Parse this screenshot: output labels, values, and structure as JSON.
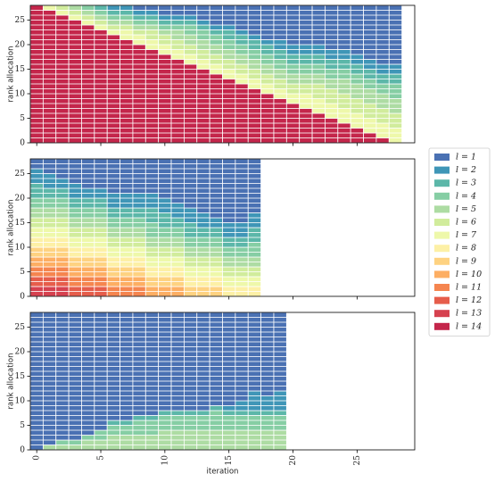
{
  "legend": {
    "entries": [
      {
        "name": "l = 1",
        "color": "#4a71b3"
      },
      {
        "name": "l = 2",
        "color": "#3f96b7"
      },
      {
        "name": "l = 3",
        "color": "#5cb7a9"
      },
      {
        "name": "l = 4",
        "color": "#86cea4"
      },
      {
        "name": "l = 5",
        "color": "#addca3"
      },
      {
        "name": "l = 6",
        "color": "#d1ec9c"
      },
      {
        "name": "l = 7",
        "color": "#eef8aa"
      },
      {
        "name": "l = 8",
        "color": "#fdf0a6"
      },
      {
        "name": "l = 9",
        "color": "#fed281"
      },
      {
        "name": "l = 10",
        "color": "#fdae63"
      },
      {
        "name": "l = 11",
        "color": "#f5854f"
      },
      {
        "name": "l = 12",
        "color": "#e65d4b"
      },
      {
        "name": "l = 13",
        "color": "#d6414f"
      },
      {
        "name": "l = 14",
        "color": "#c4264b"
      }
    ]
  },
  "chart_data": [
    {
      "type": "bar",
      "stacked": true,
      "ylabel": "rank allocation",
      "xlim": [
        -0.5,
        29.5
      ],
      "ylim": [
        0,
        28
      ],
      "yticks": [
        0,
        5,
        10,
        15,
        20,
        25
      ],
      "x": [
        0,
        1,
        2,
        3,
        4,
        5,
        6,
        7,
        8,
        9,
        10,
        11,
        12,
        13,
        14,
        15,
        16,
        17,
        18,
        19,
        20,
        21,
        22,
        23,
        24,
        25,
        26,
        27,
        28
      ],
      "series": [
        {
          "name": "l = 1",
          "values": [
            0,
            0,
            0,
            0,
            0,
            0,
            0,
            0,
            1,
            1,
            2,
            2,
            2,
            3,
            4,
            4,
            5,
            6,
            7,
            7,
            8,
            8,
            8,
            9,
            9,
            10,
            11,
            12,
            12
          ]
        },
        {
          "name": "l = 2",
          "values": [
            0,
            0,
            0,
            0,
            0,
            0,
            1,
            1,
            1,
            1,
            1,
            1,
            1,
            1,
            1,
            1,
            1,
            1,
            1,
            2,
            2,
            2,
            2,
            2,
            2,
            2,
            2,
            2,
            2
          ]
        },
        {
          "name": "l = 3",
          "values": [
            0,
            0,
            0,
            0,
            0,
            1,
            1,
            1,
            1,
            1,
            1,
            1,
            1,
            1,
            1,
            2,
            2,
            2,
            2,
            2,
            2,
            2,
            2,
            2,
            2,
            2,
            2,
            2,
            2
          ]
        },
        {
          "name": "l = 4",
          "values": [
            0,
            0,
            0,
            0,
            1,
            1,
            1,
            1,
            1,
            1,
            1,
            1,
            2,
            2,
            2,
            2,
            2,
            2,
            2,
            2,
            2,
            2,
            2,
            2,
            2,
            2,
            2,
            2,
            3
          ]
        },
        {
          "name": "l = 5",
          "values": [
            0,
            0,
            0,
            1,
            1,
            1,
            1,
            1,
            1,
            1,
            1,
            2,
            2,
            2,
            2,
            2,
            2,
            2,
            2,
            2,
            2,
            2,
            2,
            2,
            3,
            3,
            3,
            3,
            3
          ]
        },
        {
          "name": "l = 6",
          "values": [
            0,
            0,
            1,
            1,
            1,
            1,
            1,
            1,
            1,
            2,
            2,
            2,
            2,
            2,
            2,
            2,
            2,
            2,
            2,
            2,
            2,
            2,
            3,
            3,
            3,
            3,
            3,
            3,
            3
          ]
        },
        {
          "name": "l = 7",
          "values": [
            0,
            1,
            1,
            1,
            1,
            1,
            1,
            2,
            2,
            2,
            2,
            2,
            2,
            2,
            2,
            2,
            2,
            2,
            2,
            2,
            2,
            3,
            3,
            3,
            3,
            3,
            3,
            3,
            3
          ]
        },
        {
          "name": "l = 14",
          "values": [
            28,
            27,
            26,
            25,
            24,
            23,
            22,
            21,
            20,
            19,
            18,
            17,
            16,
            15,
            14,
            13,
            12,
            11,
            10,
            9,
            8,
            7,
            6,
            5,
            4,
            3,
            2,
            1,
            0
          ]
        }
      ]
    },
    {
      "type": "bar",
      "stacked": true,
      "ylabel": "rank allocation",
      "xlim": [
        -0.5,
        29.5
      ],
      "ylim": [
        0,
        28
      ],
      "yticks": [
        0,
        5,
        10,
        15,
        20,
        25
      ],
      "x": [
        0,
        1,
        2,
        3,
        4,
        5,
        6,
        7,
        8,
        9,
        10,
        11,
        12,
        13,
        14,
        15,
        16,
        17
      ],
      "series": [
        {
          "name": "l = 1",
          "values": [
            2,
            3,
            4,
            5,
            6,
            6,
            7,
            7,
            7,
            7,
            8,
            9,
            10,
            11,
            12,
            13,
            13,
            11
          ]
        },
        {
          "name": "l = 2",
          "values": [
            3,
            3,
            2,
            3,
            2,
            2,
            3,
            3,
            3,
            3,
            3,
            3,
            3,
            3,
            2,
            3,
            3,
            3
          ]
        },
        {
          "name": "l = 3",
          "values": [
            3,
            2,
            2,
            2,
            2,
            2,
            2,
            2,
            2,
            3,
            3,
            2,
            3,
            2,
            2,
            2,
            2,
            3
          ]
        },
        {
          "name": "l = 4",
          "values": [
            2,
            2,
            2,
            2,
            2,
            2,
            2,
            2,
            2,
            3,
            2,
            2,
            2,
            2,
            2,
            2,
            2,
            3
          ]
        },
        {
          "name": "l = 5",
          "values": [
            2,
            2,
            2,
            2,
            2,
            2,
            2,
            2,
            2,
            2,
            2,
            2,
            2,
            2,
            2,
            2,
            2,
            2
          ]
        },
        {
          "name": "l = 6",
          "values": [
            2,
            2,
            2,
            2,
            2,
            2,
            2,
            2,
            2,
            2,
            2,
            2,
            2,
            2,
            2,
            2,
            2,
            2
          ]
        },
        {
          "name": "l = 7",
          "values": [
            2,
            2,
            2,
            2,
            2,
            2,
            2,
            2,
            2,
            2,
            2,
            2,
            2,
            2,
            2,
            2,
            2,
            2
          ]
        },
        {
          "name": "l = 8",
          "values": [
            2,
            2,
            2,
            2,
            2,
            2,
            2,
            2,
            2,
            2,
            2,
            2,
            2,
            2,
            2,
            2,
            2,
            2
          ]
        },
        {
          "name": "l = 9",
          "values": [
            2,
            2,
            2,
            2,
            2,
            2,
            2,
            2,
            2,
            2,
            2,
            2,
            2,
            2,
            2,
            0,
            0,
            0
          ]
        },
        {
          "name": "l = 10",
          "values": [
            2,
            2,
            2,
            2,
            2,
            2,
            2,
            2,
            2,
            2,
            2,
            2,
            0,
            0,
            0,
            0,
            0,
            0
          ]
        },
        {
          "name": "l = 11",
          "values": [
            2,
            2,
            2,
            2,
            2,
            2,
            2,
            2,
            2,
            0,
            0,
            0,
            0,
            0,
            0,
            0,
            0,
            0
          ]
        },
        {
          "name": "l = 12",
          "values": [
            2,
            2,
            2,
            2,
            2,
            2,
            0,
            0,
            0,
            0,
            0,
            0,
            0,
            0,
            0,
            0,
            0,
            0
          ]
        },
        {
          "name": "l = 13",
          "values": [
            2,
            2,
            2,
            0,
            0,
            0,
            0,
            0,
            0,
            0,
            0,
            0,
            0,
            0,
            0,
            0,
            0,
            0
          ]
        }
      ]
    },
    {
      "type": "bar",
      "stacked": true,
      "ylabel": "rank allocation",
      "xlabel": "iteration",
      "xlim": [
        -0.5,
        29.5
      ],
      "ylim": [
        0,
        28
      ],
      "yticks": [
        0,
        5,
        10,
        15,
        20,
        25
      ],
      "xticks": [
        0,
        5,
        10,
        15,
        20,
        25
      ],
      "x": [
        0,
        1,
        2,
        3,
        4,
        5,
        6,
        7,
        8,
        9,
        10,
        11,
        12,
        13,
        14,
        15,
        16,
        17,
        18,
        19
      ],
      "series": [
        {
          "name": "l = 1",
          "values": [
            28,
            27,
            26,
            26,
            25,
            24,
            22,
            22,
            21,
            21,
            20,
            20,
            20,
            20,
            19,
            19,
            18,
            16,
            17,
            16
          ]
        },
        {
          "name": "l = 2",
          "values": [
            0,
            0,
            0,
            0,
            0,
            0,
            0,
            0,
            0,
            0,
            0,
            0,
            0,
            0,
            0,
            1,
            2,
            4,
            3,
            4
          ]
        },
        {
          "name": "l = 3",
          "values": [
            0,
            0,
            0,
            0,
            0,
            0,
            1,
            1,
            1,
            1,
            1,
            1,
            1,
            1,
            1,
            1,
            1,
            1,
            1,
            1
          ]
        },
        {
          "name": "l = 4",
          "values": [
            0,
            0,
            1,
            1,
            1,
            2,
            2,
            2,
            3,
            3,
            3,
            3,
            3,
            3,
            4,
            3,
            3,
            3,
            3,
            3
          ]
        },
        {
          "name": "l = 5",
          "values": [
            0,
            1,
            1,
            1,
            2,
            2,
            3,
            3,
            3,
            3,
            4,
            4,
            4,
            4,
            4,
            4,
            4,
            4,
            4,
            4
          ]
        }
      ]
    }
  ]
}
